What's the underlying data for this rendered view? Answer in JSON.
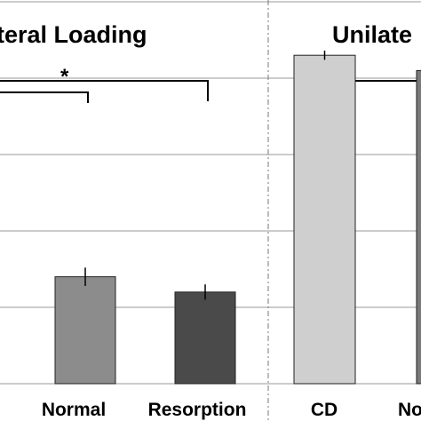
{
  "chart_data": {
    "type": "bar",
    "group_headers": [
      "teral Loading",
      "Unilate"
    ],
    "categories": [
      "Normal",
      "Resorption",
      "CD",
      "No"
    ],
    "values": [
      1.4,
      1.2,
      4.3,
      4.1
    ],
    "errors": [
      0.12,
      0.1,
      0.06,
      0.0
    ],
    "colors": [
      "#8c8c8c",
      "#4a4a4a",
      "#cfcfcf",
      "#7a7a7a"
    ],
    "ylim": [
      0,
      5
    ],
    "grid": true,
    "significance": [
      "*"
    ]
  }
}
